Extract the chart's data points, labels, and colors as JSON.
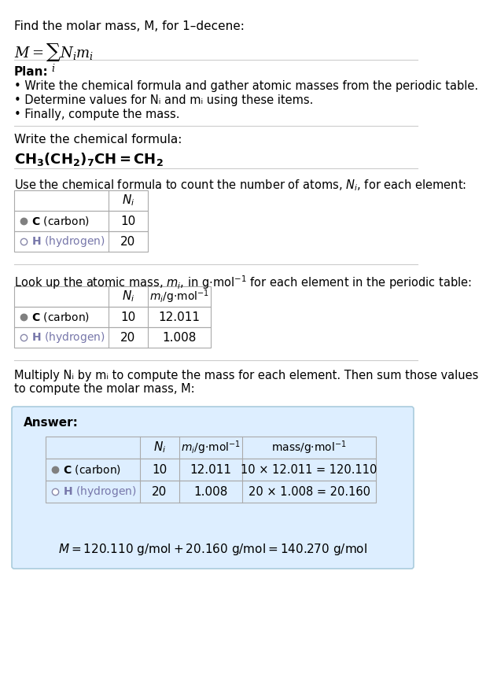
{
  "title_line": "Find the molar mass, M, for 1–decene:",
  "formula_title": "M = Σ Nᵢmᵢ",
  "formula_subscript_i": "i",
  "bg_color": "#ffffff",
  "section_bg": "#e8f4f8",
  "table_border": "#cccccc",
  "text_color": "#000000",
  "carbon_dot_color": "#808080",
  "hydrogen_dot_color": "#c0c0c0",
  "plan_header": "Plan:",
  "plan_bullets": [
    "• Write the chemical formula and gather atomic masses from the periodic table.",
    "• Determine values for Nᵢ and mᵢ using these items.",
    "• Finally, compute the mass."
  ],
  "chemical_formula_header": "Write the chemical formula:",
  "chemical_formula": "CH₃(CH₂)₇CH=CH₂",
  "count_header": "Use the chemical formula to count the number of atoms, Nᵢ, for each element:",
  "lookup_header": "Look up the atomic mass, mᵢ, in g·mol⁻¹ for each element in the periodic table:",
  "multiply_header": "Multiply Nᵢ by mᵢ to compute the mass for each element. Then sum those values\nto compute the molar mass, M:",
  "elements": [
    "C (carbon)",
    "H (hydrogen)"
  ],
  "N_i": [
    10,
    20
  ],
  "m_i": [
    12.011,
    1.008
  ],
  "mass_expr": [
    "10 × 12.011 = 120.110",
    "20 × 1.008 = 20.160"
  ],
  "final_eq": "M = 120.110 g/mol + 20.160 g/mol = 140.270 g/mol"
}
